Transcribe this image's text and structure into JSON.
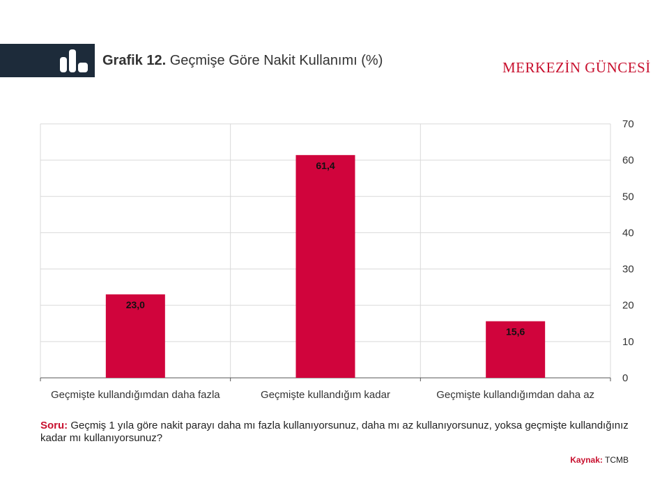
{
  "header": {
    "figure_number": "Grafik 12.",
    "title": "Geçmişe Göre Nakit Kullanımı (%)",
    "brand": "MERKEZİN GÜNCESİ",
    "logo_icon": "bar-chart-icon"
  },
  "chart_data": {
    "type": "bar",
    "categories": [
      "Geçmişte kullandığımdan daha fazla",
      "Geçmişte kullandığım kadar",
      "Geçmişte kullandığımdan daha az"
    ],
    "values": [
      23.0,
      61.4,
      15.6
    ],
    "value_labels": [
      "23,0",
      "61,4",
      "15,6"
    ],
    "ylim": [
      0,
      70
    ],
    "yticks": [
      0,
      10,
      20,
      30,
      40,
      50,
      60,
      70
    ],
    "y_axis_side": "right",
    "grid": true,
    "bar_color": "#d0043c"
  },
  "footer": {
    "question_label": "Soru:",
    "question_text": "Geçmiş 1 yıla göre nakit parayı daha mı fazla kullanıyorsunuz, daha mı az kullanıyorsunuz, yoksa geçmişte kullandığınız kadar mı kullanıyorsunuz?",
    "source_label": "Kaynak:",
    "source_text": "TCMB"
  }
}
